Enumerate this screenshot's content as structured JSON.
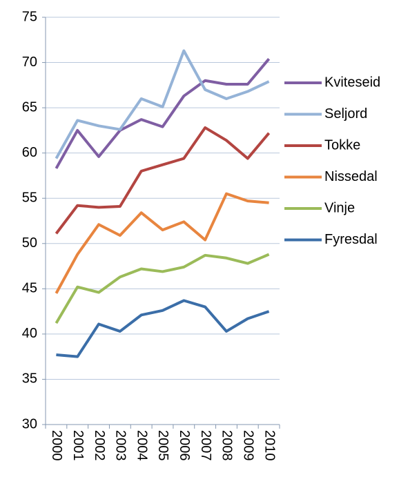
{
  "chart_data": {
    "type": "line",
    "categories": [
      "2000",
      "2001",
      "2002",
      "2003",
      "2004",
      "2005",
      "2006",
      "2007",
      "2008",
      "2009",
      "2010"
    ],
    "series": [
      {
        "name": "Kviteseid",
        "color": "#7f5ea3",
        "values": [
          58.3,
          62.5,
          59.6,
          62.5,
          63.7,
          62.9,
          66.3,
          68.0,
          67.6,
          67.6,
          70.4
        ]
      },
      {
        "name": "Seljord",
        "color": "#95b3d7",
        "values": [
          59.4,
          63.6,
          63.0,
          62.6,
          66.0,
          65.1,
          71.3,
          67.0,
          66.0,
          66.8,
          67.9
        ]
      },
      {
        "name": "Tokke",
        "color": "#b34541",
        "values": [
          51.1,
          54.2,
          54.0,
          54.1,
          58.0,
          58.7,
          59.4,
          62.8,
          61.4,
          59.4,
          62.2
        ]
      },
      {
        "name": "Nissedal",
        "color": "#e8853f",
        "values": [
          44.5,
          48.8,
          52.1,
          50.9,
          53.4,
          51.5,
          52.4,
          50.4,
          55.5,
          54.7,
          54.5
        ]
      },
      {
        "name": "Vinje",
        "color": "#9bbb59",
        "values": [
          41.2,
          45.2,
          44.6,
          46.3,
          47.2,
          46.9,
          47.4,
          48.7,
          48.4,
          47.8,
          48.8
        ]
      },
      {
        "name": "Fyresdal",
        "color": "#3b6ea8",
        "values": [
          37.7,
          37.5,
          41.1,
          40.3,
          42.1,
          42.6,
          43.7,
          43.0,
          40.3,
          41.7,
          42.5
        ]
      }
    ],
    "ylim": [
      30,
      75
    ],
    "yticks": [
      30,
      35,
      40,
      45,
      50,
      55,
      60,
      65,
      70,
      75
    ],
    "grid": true,
    "legend": "right"
  }
}
